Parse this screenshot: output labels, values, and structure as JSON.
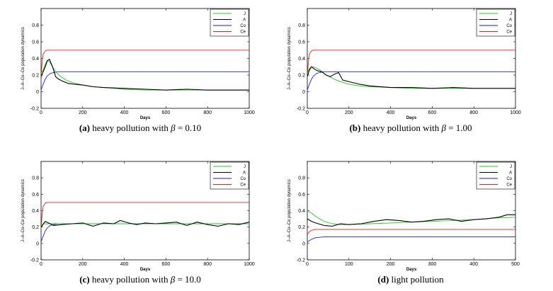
{
  "chart_data": [
    {
      "type": "line",
      "caption_tag": "(a)",
      "caption_text": "heavy pollution with ",
      "caption_symbol": "β",
      "caption_value": " = 0.10",
      "xlabel": "Days",
      "ylabel": "J–A–Co–Ce population dynamics",
      "xlim": [
        0,
        1000
      ],
      "ylim": [
        -0.2,
        1.0
      ],
      "xticks": [
        0,
        200,
        400,
        600,
        800,
        1000
      ],
      "yticks": [
        -0.2,
        0,
        0.2,
        0.4,
        0.6,
        0.8
      ],
      "legend": [
        "J",
        "A",
        "Co",
        "Ce"
      ],
      "colors": {
        "J": "#22cc22",
        "A": "#000000",
        "Co": "#1a1aee",
        "Ce": "#e8201a"
      },
      "series": [
        {
          "name": "J",
          "x": [
            0,
            10,
            20,
            30,
            40,
            55,
            70,
            90,
            120,
            150,
            200,
            250,
            300,
            400,
            500,
            600,
            700,
            800,
            900,
            1000
          ],
          "values": [
            0.22,
            0.26,
            0.33,
            0.38,
            0.36,
            0.3,
            0.24,
            0.19,
            0.14,
            0.11,
            0.08,
            0.06,
            0.05,
            0.03,
            0.02,
            0.02,
            0.02,
            0.02,
            0.02,
            0.02
          ]
        },
        {
          "name": "A",
          "x": [
            0,
            10,
            20,
            30,
            40,
            55,
            70,
            85,
            100,
            130,
            160,
            200,
            250,
            300,
            400,
            500,
            600,
            700,
            800,
            900,
            1000
          ],
          "values": [
            0.18,
            0.24,
            0.3,
            0.37,
            0.39,
            0.3,
            0.18,
            0.15,
            0.13,
            0.1,
            0.09,
            0.08,
            0.06,
            0.05,
            0.04,
            0.03,
            0.02,
            0.03,
            0.02,
            0.02,
            0.02
          ]
        },
        {
          "name": "Co",
          "x": [
            0,
            10,
            20,
            30,
            45,
            60,
            80,
            100,
            1000
          ],
          "values": [
            0.02,
            0.09,
            0.15,
            0.19,
            0.22,
            0.23,
            0.24,
            0.24,
            0.24
          ]
        },
        {
          "name": "Ce",
          "x": [
            0,
            5,
            10,
            20,
            30,
            1000
          ],
          "values": [
            0.18,
            0.36,
            0.45,
            0.49,
            0.5,
            0.5
          ]
        }
      ]
    },
    {
      "type": "line",
      "caption_tag": "(b)",
      "caption_text": "heavy pollution with ",
      "caption_symbol": "β",
      "caption_value": " = 1.00",
      "xlabel": "Days",
      "ylabel": "J–A–Co–Ce population dynamics",
      "xlim": [
        0,
        1000
      ],
      "ylim": [
        -0.2,
        1.0
      ],
      "xticks": [
        0,
        200,
        400,
        600,
        800,
        1000
      ],
      "yticks": [
        -0.2,
        0,
        0.2,
        0.4,
        0.6,
        0.8
      ],
      "legend": [
        "J",
        "A",
        "Co",
        "Ce"
      ],
      "colors": {
        "J": "#22cc22",
        "A": "#000000",
        "Co": "#1a1aee",
        "Ce": "#e8201a"
      },
      "series": [
        {
          "name": "J",
          "x": [
            0,
            10,
            20,
            40,
            60,
            80,
            100,
            130,
            160,
            200,
            250,
            300,
            400,
            500,
            600,
            700,
            800,
            900,
            1000
          ],
          "values": [
            0.22,
            0.28,
            0.3,
            0.29,
            0.26,
            0.22,
            0.19,
            0.15,
            0.12,
            0.09,
            0.07,
            0.06,
            0.05,
            0.04,
            0.04,
            0.04,
            0.04,
            0.04,
            0.04
          ]
        },
        {
          "name": "A",
          "x": [
            0,
            10,
            20,
            35,
            50,
            70,
            90,
            110,
            130,
            150,
            170,
            200,
            250,
            300,
            400,
            500,
            600,
            700,
            800,
            900,
            1000
          ],
          "values": [
            0.18,
            0.26,
            0.3,
            0.27,
            0.25,
            0.24,
            0.2,
            0.18,
            0.21,
            0.23,
            0.14,
            0.12,
            0.09,
            0.07,
            0.05,
            0.05,
            0.04,
            0.05,
            0.04,
            0.04,
            0.04
          ]
        },
        {
          "name": "Co",
          "x": [
            0,
            10,
            20,
            30,
            45,
            60,
            80,
            100,
            1000
          ],
          "values": [
            0.02,
            0.09,
            0.15,
            0.19,
            0.22,
            0.23,
            0.24,
            0.24,
            0.24
          ]
        },
        {
          "name": "Ce",
          "x": [
            0,
            5,
            10,
            20,
            30,
            1000
          ],
          "values": [
            0.18,
            0.36,
            0.45,
            0.49,
            0.5,
            0.5
          ]
        }
      ]
    },
    {
      "type": "line",
      "caption_tag": "(c)",
      "caption_text": "heavy pollution with ",
      "caption_symbol": "β",
      "caption_value": " = 10.0",
      "xlabel": "Days",
      "ylabel": "J–A–Co–Ce population dynamics",
      "xlim": [
        0,
        1000
      ],
      "ylim": [
        -0.2,
        1.0
      ],
      "xticks": [
        0,
        200,
        400,
        600,
        800,
        1000
      ],
      "yticks": [
        -0.2,
        0,
        0.2,
        0.4,
        0.6,
        0.8
      ],
      "legend": [
        "J",
        "A",
        "Co",
        "Ce"
      ],
      "colors": {
        "J": "#22cc22",
        "A": "#000000",
        "Co": "#1a1aee",
        "Ce": "#e8201a"
      },
      "series": [
        {
          "name": "J",
          "x": [
            0,
            10,
            20,
            40,
            100,
            200,
            300,
            400,
            500,
            600,
            700,
            800,
            900,
            1000
          ],
          "values": [
            0.22,
            0.24,
            0.24,
            0.24,
            0.24,
            0.24,
            0.24,
            0.24,
            0.24,
            0.24,
            0.24,
            0.24,
            0.24,
            0.24
          ]
        },
        {
          "name": "A",
          "x": [
            0,
            20,
            60,
            100,
            150,
            200,
            250,
            300,
            350,
            380,
            420,
            460,
            500,
            550,
            600,
            650,
            700,
            750,
            800,
            850,
            900,
            950,
            1000
          ],
          "values": [
            0.2,
            0.27,
            0.22,
            0.23,
            0.24,
            0.25,
            0.21,
            0.25,
            0.24,
            0.28,
            0.25,
            0.23,
            0.25,
            0.24,
            0.25,
            0.26,
            0.22,
            0.26,
            0.23,
            0.21,
            0.24,
            0.23,
            0.26
          ]
        },
        {
          "name": "Co",
          "x": [
            0,
            10,
            20,
            30,
            45,
            60,
            80,
            100,
            1000
          ],
          "values": [
            0.02,
            0.09,
            0.15,
            0.19,
            0.22,
            0.23,
            0.24,
            0.24,
            0.24
          ]
        },
        {
          "name": "Ce",
          "x": [
            0,
            5,
            10,
            20,
            30,
            1000
          ],
          "values": [
            0.18,
            0.36,
            0.45,
            0.49,
            0.5,
            0.5
          ]
        }
      ]
    },
    {
      "type": "line",
      "caption_tag": "(d)",
      "caption_text": "light pollution",
      "caption_symbol": "",
      "caption_value": "",
      "xlabel": "Days",
      "ylabel": "J–A–Co–Ce population dynamics",
      "xlim": [
        0,
        500
      ],
      "ylim": [
        -0.2,
        1.0
      ],
      "xticks": [
        0,
        100,
        200,
        300,
        400,
        500
      ],
      "yticks": [
        -0.2,
        0,
        0.2,
        0.4,
        0.6,
        0.8
      ],
      "legend": [
        "J",
        "A",
        "Co",
        "Ce"
      ],
      "colors": {
        "J": "#22cc22",
        "A": "#000000",
        "Co": "#1a1aee",
        "Ce": "#e8201a"
      },
      "series": [
        {
          "name": "J",
          "x": [
            0,
            10,
            20,
            40,
            60,
            80,
            100,
            150,
            200,
            250,
            300,
            350,
            400,
            450,
            500
          ],
          "values": [
            0.4,
            0.37,
            0.33,
            0.27,
            0.24,
            0.23,
            0.23,
            0.24,
            0.25,
            0.26,
            0.27,
            0.28,
            0.29,
            0.31,
            0.32
          ]
        },
        {
          "name": "A",
          "x": [
            0,
            10,
            20,
            40,
            60,
            80,
            100,
            130,
            160,
            190,
            220,
            250,
            280,
            310,
            340,
            370,
            400,
            430,
            460,
            480,
            500
          ],
          "values": [
            0.3,
            0.27,
            0.25,
            0.22,
            0.21,
            0.24,
            0.23,
            0.24,
            0.27,
            0.29,
            0.28,
            0.26,
            0.27,
            0.29,
            0.3,
            0.27,
            0.29,
            0.3,
            0.32,
            0.35,
            0.35
          ]
        },
        {
          "name": "Co",
          "x": [
            0,
            10,
            20,
            40,
            60,
            100,
            500
          ],
          "values": [
            0.02,
            0.05,
            0.07,
            0.08,
            0.08,
            0.08,
            0.08
          ]
        },
        {
          "name": "Ce",
          "x": [
            0,
            5,
            10,
            20,
            40,
            500
          ],
          "values": [
            0.11,
            0.14,
            0.16,
            0.17,
            0.17,
            0.17
          ]
        }
      ]
    }
  ]
}
